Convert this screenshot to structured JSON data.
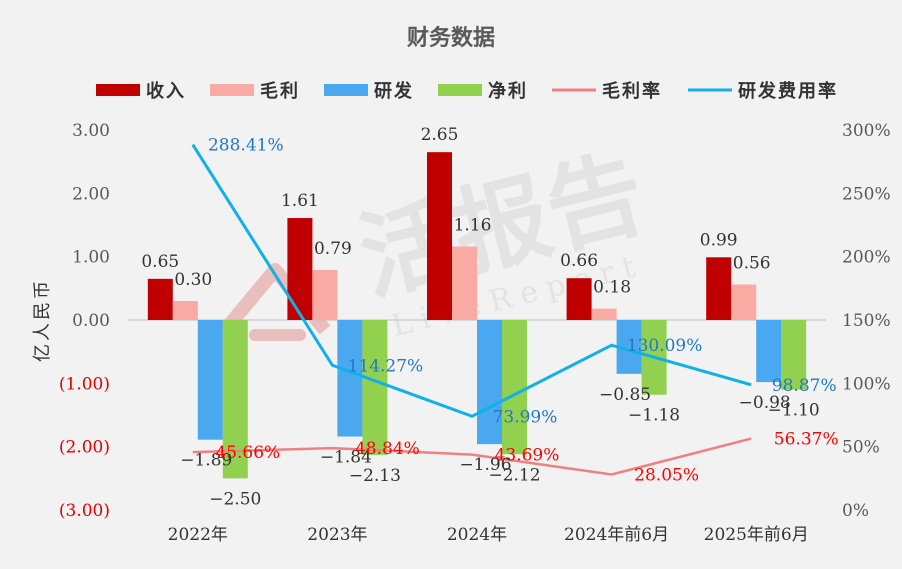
{
  "chart_data": {
    "type": "bar",
    "title": "财务数据",
    "ylabel": "亿人民币",
    "categories": [
      "2022年",
      "2023年",
      "2024年",
      "2024年前6月",
      "2025年前6月"
    ],
    "ylim": [
      -3,
      3
    ],
    "y_ticks": [
      "3.00",
      "2.00",
      "1.00",
      "0.00",
      "(1.00)",
      "(2.00)",
      "(3.00)"
    ],
    "y2lim": [
      0,
      300
    ],
    "y2_ticks": [
      "300%",
      "250%",
      "200%",
      "150%",
      "100%",
      "50%",
      "0%"
    ],
    "grid": false,
    "legend_position": "top",
    "bar_series": [
      {
        "name": "收入",
        "color": "#c00000",
        "values": [
          0.65,
          1.61,
          2.65,
          0.66,
          0.99
        ],
        "labels": [
          "0.65",
          "1.61",
          "2.65",
          "0.66",
          "0.99"
        ]
      },
      {
        "name": "毛利",
        "color": "#f8aaa3",
        "values": [
          0.3,
          0.79,
          1.16,
          0.18,
          0.56
        ],
        "labels": [
          "0.30",
          "0.79",
          "1.16",
          "0.18",
          "0.56"
        ]
      },
      {
        "name": "研发",
        "color": "#4aa8f0",
        "values": [
          -1.89,
          -1.84,
          -1.96,
          -0.85,
          -0.98
        ],
        "labels": [
          "−1.89",
          "−1.84",
          "−1.96",
          "−0.85",
          "−0.98"
        ]
      },
      {
        "name": "净利",
        "color": "#92d050",
        "values": [
          -2.5,
          -2.13,
          -2.12,
          -1.18,
          -1.1
        ],
        "labels": [
          "−2.50",
          "−2.13",
          "−2.12",
          "−1.18",
          "−1.10"
        ]
      }
    ],
    "line_series": [
      {
        "name": "毛利率",
        "color": "#f08080",
        "label_color": "#ff0000",
        "values": [
          45.66,
          48.84,
          43.69,
          28.05,
          56.37
        ],
        "labels": [
          "45.66%",
          "48.84%",
          "43.69%",
          "28.05%",
          "56.37%"
        ]
      },
      {
        "name": "研发费用率",
        "color": "#10b0e8",
        "label_color": "#1f78c8",
        "values": [
          288.41,
          114.27,
          73.99,
          130.09,
          98.87
        ],
        "labels": [
          "288.41%",
          "114.27%",
          "73.99%",
          "130.09%",
          "98.87%"
        ]
      }
    ],
    "watermark": "活报告 LiveReport"
  }
}
